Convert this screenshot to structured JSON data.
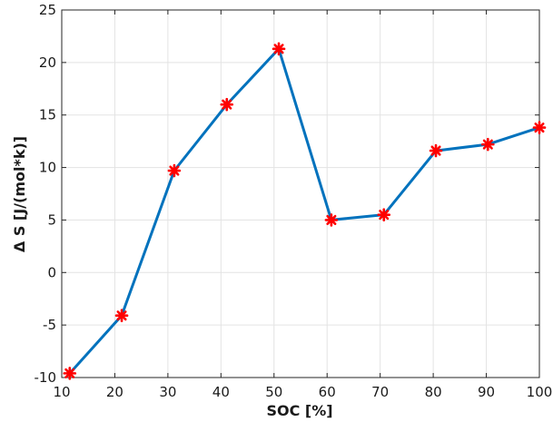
{
  "chart_data": {
    "type": "line",
    "title": "",
    "xlabel": "SOC [%]",
    "ylabel": "Δ S [J/(mol*k)]",
    "xlim": [
      10,
      100
    ],
    "ylim": [
      -10,
      25
    ],
    "xticks": [
      10,
      20,
      30,
      40,
      50,
      60,
      70,
      80,
      90,
      100
    ],
    "yticks": [
      -10,
      -5,
      0,
      5,
      10,
      15,
      20,
      25
    ],
    "grid": true,
    "colors": {
      "line": "#0072BD",
      "marker": "#FF0000",
      "grid": "#e3e3e3",
      "axis": "#262626"
    },
    "series": [
      {
        "x": [
          11.5,
          21.3,
          31.2,
          41.1,
          50.9,
          60.8,
          70.7,
          80.5,
          90.3,
          100
        ],
        "y": [
          -9.6,
          -4.1,
          9.7,
          16.0,
          21.3,
          5.0,
          5.5,
          11.6,
          12.2,
          13.8
        ]
      }
    ]
  }
}
